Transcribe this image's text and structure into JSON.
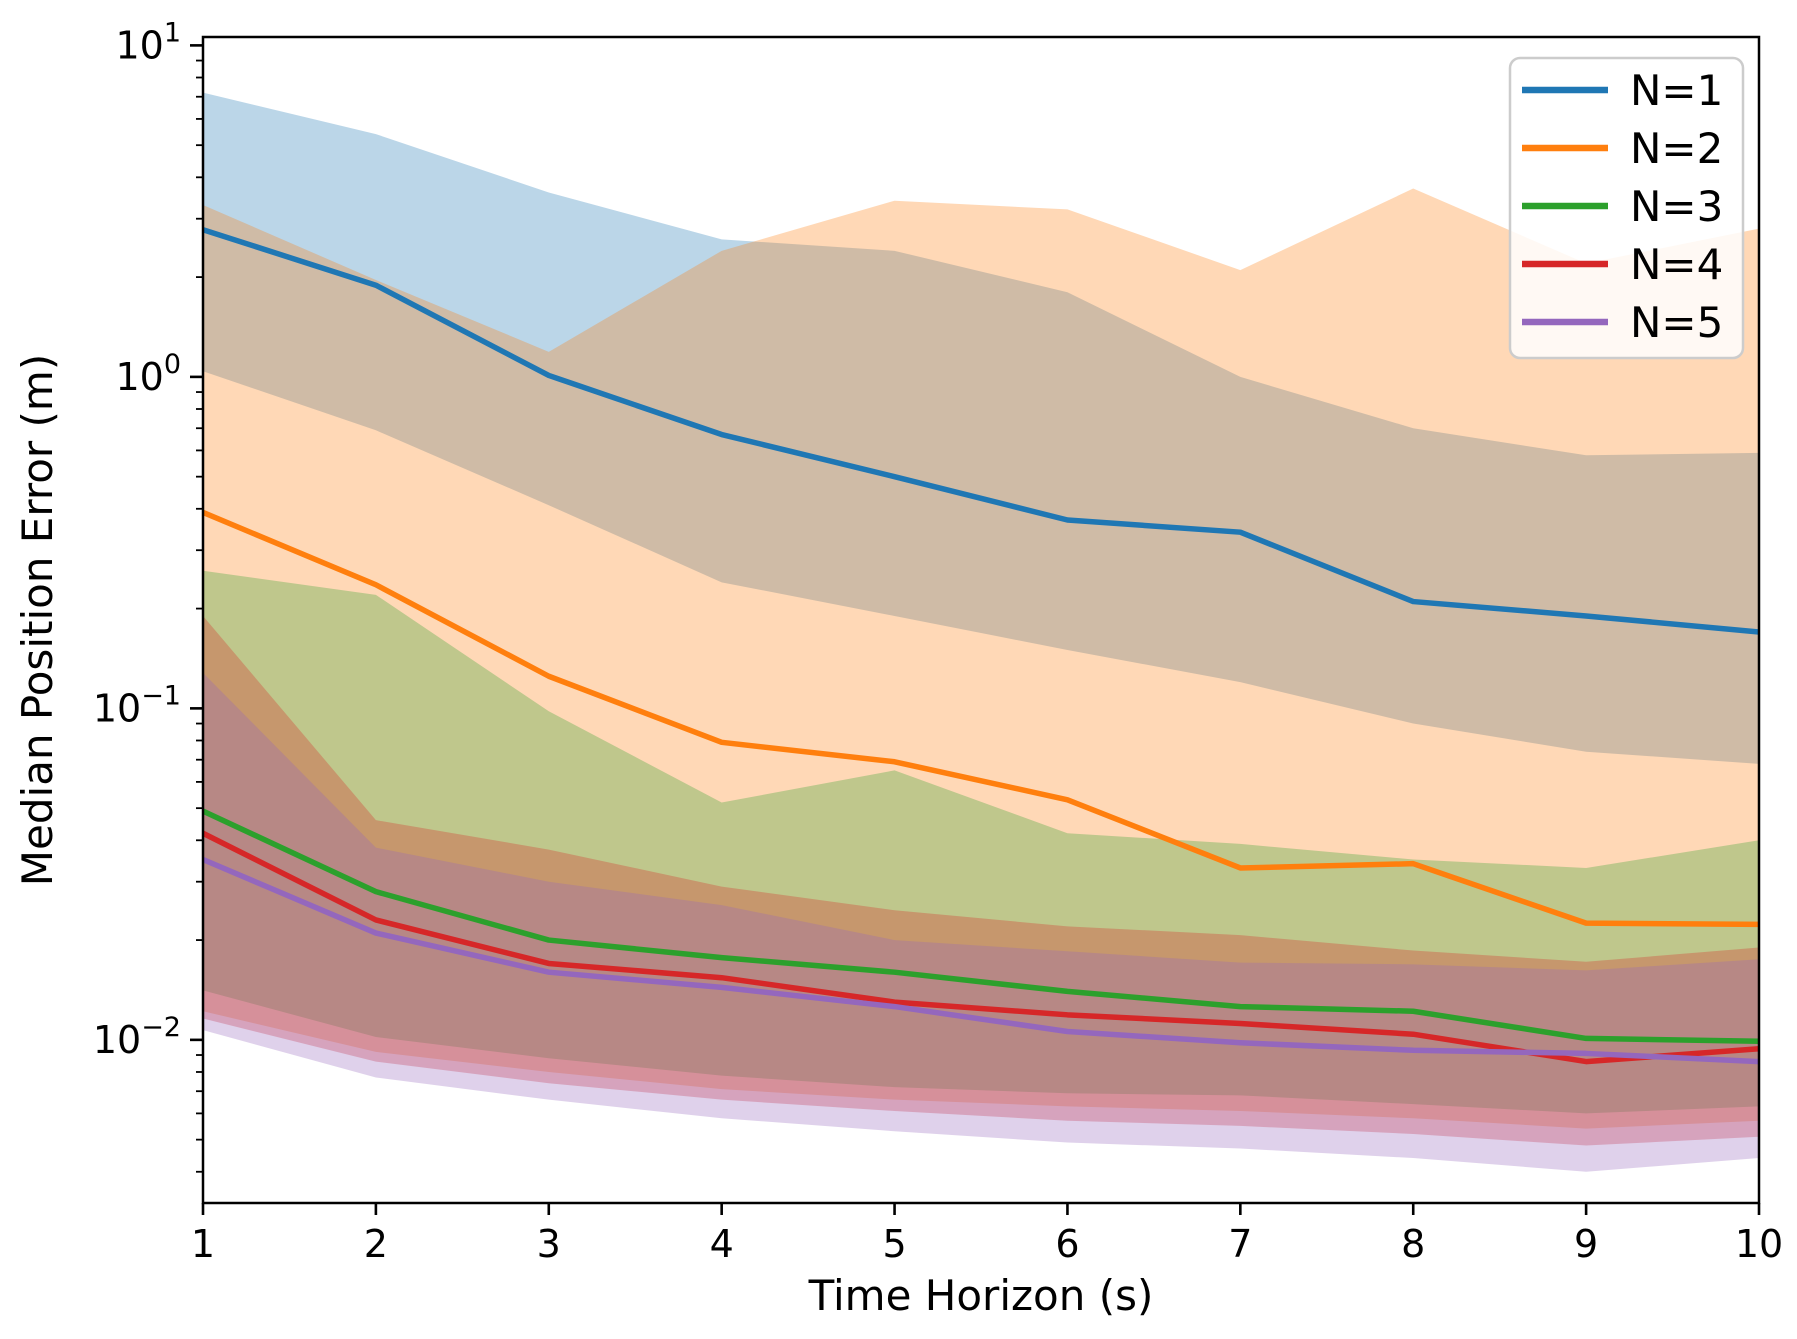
{
  "chart_data": {
    "type": "line",
    "title": "",
    "xlabel": "Time Horizon (s)",
    "ylabel": "Median Position Error (m)",
    "yscale": "log",
    "x": [
      1,
      2,
      3,
      4,
      5,
      6,
      7,
      8,
      9,
      10
    ],
    "xlim": [
      1,
      10
    ],
    "ylim": [
      0.00322,
      10.6
    ],
    "x_tick_labels": [
      "1",
      "2",
      "3",
      "4",
      "5",
      "6",
      "7",
      "8",
      "9",
      "10"
    ],
    "y_tick_values": [
      10,
      1,
      0.1,
      0.01
    ],
    "y_tick_exponents": [
      1,
      0,
      -1,
      -2
    ],
    "grid": false,
    "legend_position": "upper right",
    "band_alpha": 0.3,
    "series": [
      {
        "name": "N=1",
        "color": "#1f77b4",
        "median": [
          2.78,
          1.89,
          1.01,
          0.67,
          0.5,
          0.37,
          0.34,
          0.21,
          0.19,
          0.17
        ],
        "band_lo": [
          1.04,
          0.69,
          0.41,
          0.24,
          0.19,
          0.15,
          0.12,
          0.09,
          0.074,
          0.068
        ],
        "band_hi": [
          7.2,
          5.4,
          3.6,
          2.6,
          2.4,
          1.8,
          1.0,
          0.7,
          0.58,
          0.59
        ]
      },
      {
        "name": "N=2",
        "color": "#ff7f0e",
        "median": [
          0.39,
          0.236,
          0.125,
          0.079,
          0.069,
          0.053,
          0.033,
          0.034,
          0.0225,
          0.0223
        ],
        "band_lo": [
          0.0122,
          0.0092,
          0.008,
          0.0071,
          0.0066,
          0.0063,
          0.0061,
          0.0058,
          0.0054,
          0.0057
        ],
        "band_hi": [
          3.3,
          1.96,
          1.19,
          2.4,
          3.4,
          3.2,
          2.1,
          3.7,
          2.2,
          2.8
        ]
      },
      {
        "name": "N=3",
        "color": "#2ca02c",
        "median": [
          0.049,
          0.028,
          0.02,
          0.0177,
          0.016,
          0.014,
          0.0126,
          0.0122,
          0.0101,
          0.0099
        ],
        "band_lo": [
          0.0141,
          0.0102,
          0.0088,
          0.0078,
          0.0072,
          0.0069,
          0.0068,
          0.0064,
          0.006,
          0.0063
        ],
        "band_hi": [
          0.26,
          0.22,
          0.098,
          0.052,
          0.065,
          0.042,
          0.039,
          0.035,
          0.033,
          0.04
        ]
      },
      {
        "name": "N=4",
        "color": "#d62728",
        "median": [
          0.042,
          0.023,
          0.017,
          0.0154,
          0.013,
          0.0119,
          0.0112,
          0.0104,
          0.0086,
          0.0094
        ],
        "band_lo": [
          0.0116,
          0.0086,
          0.0074,
          0.0066,
          0.0061,
          0.0057,
          0.0055,
          0.0052,
          0.0048,
          0.0051
        ],
        "band_hi": [
          0.19,
          0.046,
          0.0375,
          0.029,
          0.0246,
          0.022,
          0.0207,
          0.0186,
          0.0172,
          0.019
        ]
      },
      {
        "name": "N=5",
        "color": "#9467bd",
        "median": [
          0.035,
          0.021,
          0.016,
          0.0144,
          0.0126,
          0.0106,
          0.0098,
          0.0093,
          0.0091,
          0.0086
        ],
        "band_lo": [
          0.0107,
          0.0077,
          0.0066,
          0.0058,
          0.0053,
          0.0049,
          0.0047,
          0.0044,
          0.004,
          0.0044
        ],
        "band_hi": [
          0.128,
          0.038,
          0.03,
          0.0255,
          0.02,
          0.0185,
          0.0171,
          0.0169,
          0.0162,
          0.0175
        ]
      }
    ],
    "legend_labels": [
      "N=1",
      "N=2",
      "N=3",
      "N=4",
      "N=5"
    ]
  },
  "layout_colors": {
    "axis": "#000000",
    "legend_border": "#cccccc",
    "background": "#ffffff"
  }
}
